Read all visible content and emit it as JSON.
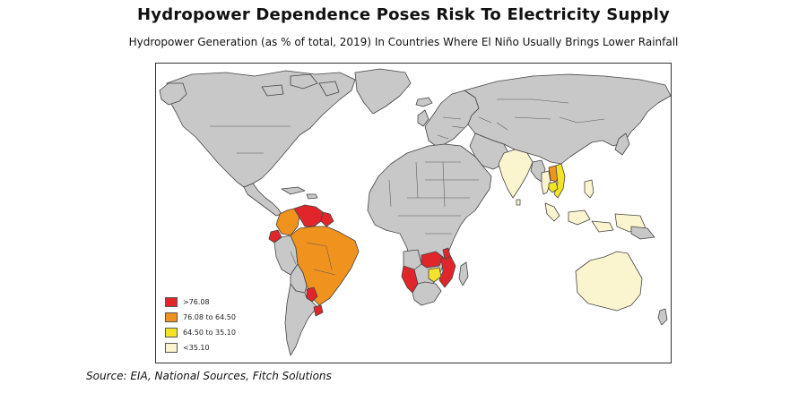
{
  "title": "Hydropower Dependence Poses Risk To Electricity Supply",
  "subtitle": "Hydropower Generation (as % of total, 2019) In Countries Where El Niño Usually Brings Lower Rainfall",
  "source": "Source: EIA, National Sources, Fitch Solutions",
  "legend": {
    "items": [
      {
        "label": ">76.08",
        "color": "#e0262b"
      },
      {
        "label": "76.08 to 64.50",
        "color": "#f0921e"
      },
      {
        "label": "64.50 to 35.10",
        "color": "#f5e32a"
      },
      {
        "label": "<35.10",
        "color": "#fbf5cf"
      }
    ]
  },
  "colors": {
    "no_data": "#c8c8c8",
    "ocean": "#ffffff"
  }
}
